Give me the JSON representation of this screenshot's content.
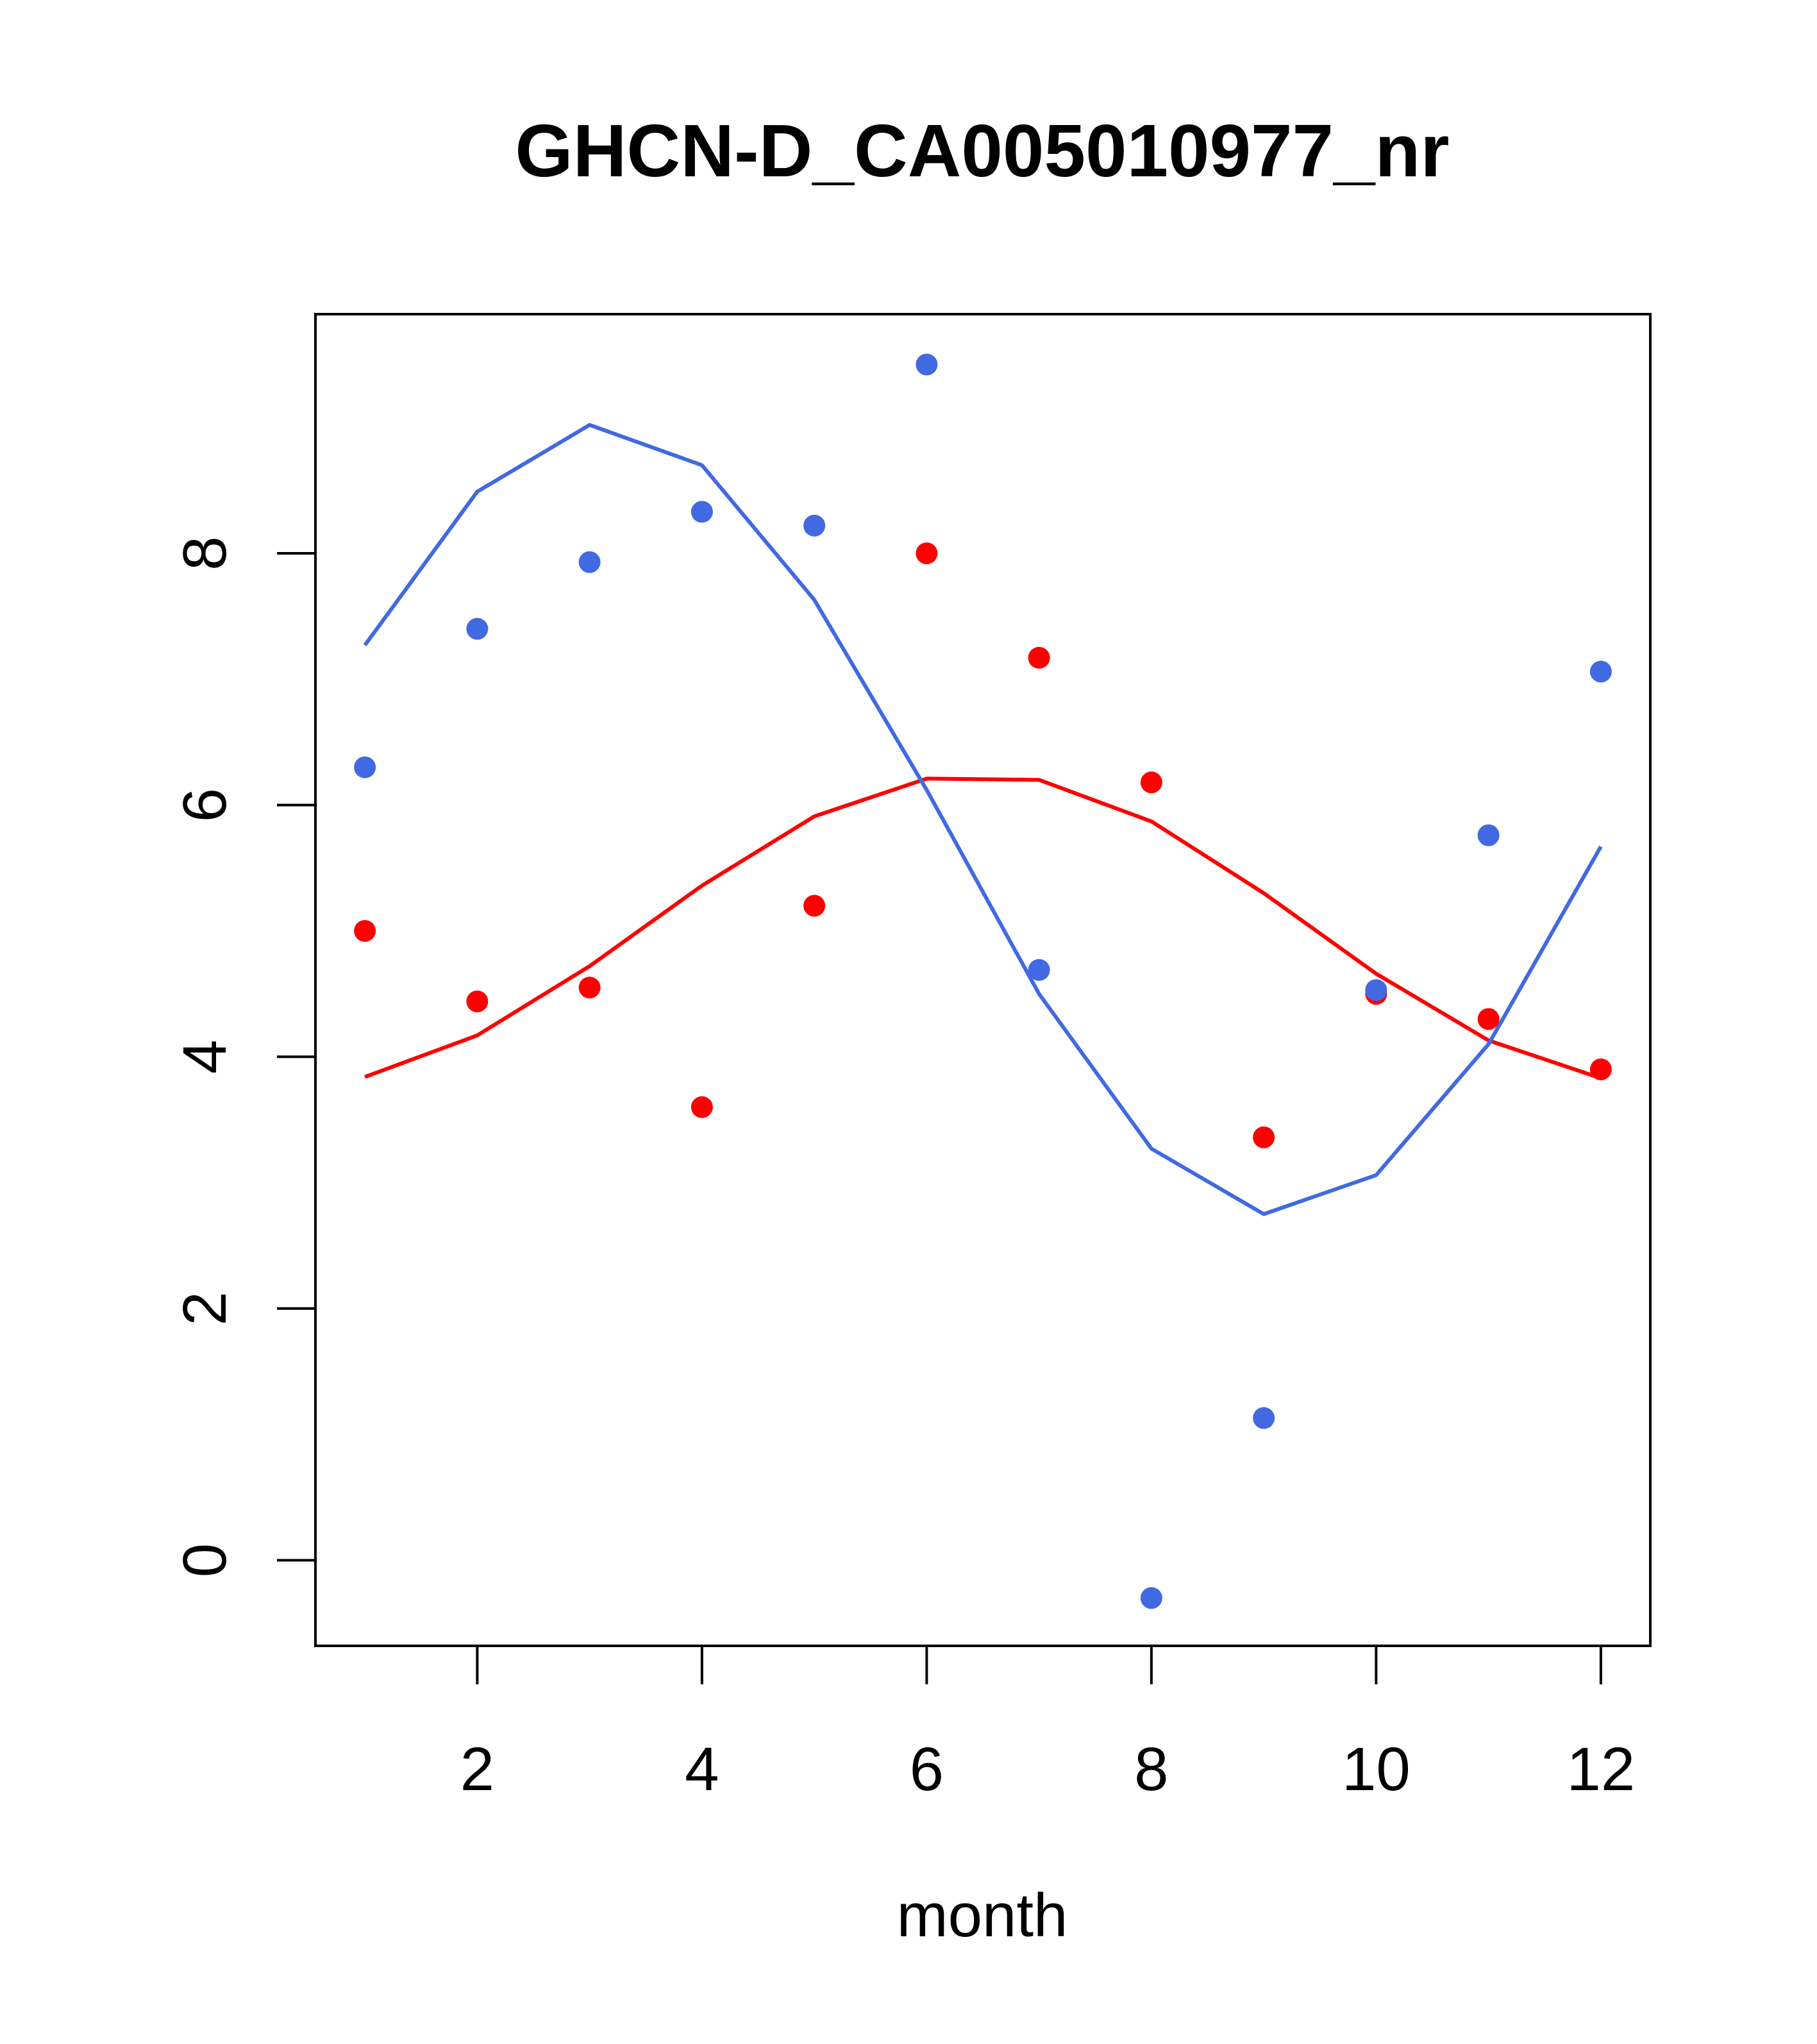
{
  "chart_data": {
    "type": "scatter",
    "title": "GHCN-D_CA005010977_nr",
    "xlabel": "month",
    "ylabel": "",
    "xlim": [
      0.56,
      12.44
    ],
    "ylim": [
      -0.68,
      9.9
    ],
    "x_ticks": [
      2,
      4,
      6,
      8,
      10,
      12
    ],
    "x_tick_labels": [
      "2",
      "4",
      "6",
      "8",
      "10",
      "12"
    ],
    "y_ticks": [
      0,
      2,
      4,
      6,
      8
    ],
    "y_tick_labels": [
      "0",
      "2",
      "4",
      "6",
      "8"
    ],
    "grid": false,
    "series": [
      {
        "kind": "points",
        "color": "#ff0000",
        "x": [
          1,
          2,
          3,
          4,
          5,
          6,
          7,
          8,
          9,
          10,
          11,
          12
        ],
        "y": [
          5.0,
          4.44,
          4.55,
          3.6,
          5.2,
          8.0,
          7.17,
          6.18,
          3.36,
          4.5,
          4.3,
          3.9
        ]
      },
      {
        "kind": "points",
        "color": "#4169e1",
        "x": [
          1,
          2,
          3,
          4,
          5,
          6,
          7,
          8,
          9,
          10,
          11,
          12
        ],
        "y": [
          6.3,
          7.4,
          7.93,
          8.33,
          8.22,
          9.5,
          4.69,
          -0.3,
          1.13,
          4.53,
          5.76,
          7.06
        ]
      },
      {
        "kind": "line",
        "color": "#ff0000",
        "x": [
          1,
          2,
          3,
          4,
          5,
          6,
          7,
          8,
          9,
          10,
          11,
          12
        ],
        "y": [
          3.84,
          4.17,
          4.72,
          5.36,
          5.91,
          6.21,
          6.2,
          5.87,
          5.3,
          4.66,
          4.13,
          3.83
        ]
      },
      {
        "kind": "line",
        "color": "#4169e1",
        "x": [
          1,
          2,
          3,
          4,
          5,
          6,
          7,
          8,
          9,
          10,
          11,
          12
        ],
        "y": [
          7.27,
          8.49,
          9.02,
          8.7,
          7.63,
          6.12,
          4.5,
          3.27,
          2.75,
          3.06,
          4.1,
          5.67
        ]
      }
    ]
  }
}
